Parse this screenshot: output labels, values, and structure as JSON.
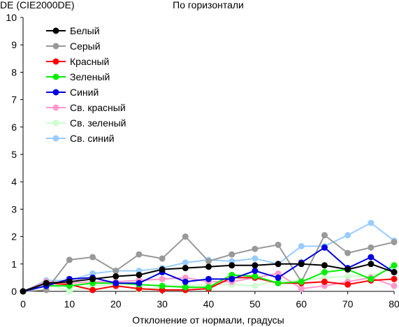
{
  "chart_data": {
    "type": "line",
    "title": "По горизонтали",
    "ylabel": "DE (CIE2000DE)",
    "xlabel": "Отклонение от нормали, градусы",
    "xlim": [
      0,
      80
    ],
    "ylim": [
      0,
      10
    ],
    "x_ticks": [
      0,
      10,
      20,
      30,
      40,
      50,
      60,
      70,
      80
    ],
    "y_ticks": [
      0,
      1,
      2,
      3,
      4,
      5,
      6,
      7,
      8,
      9,
      10
    ],
    "grid": false,
    "legend_position": "top-left",
    "x": [
      0,
      5,
      10,
      15,
      20,
      25,
      30,
      35,
      40,
      45,
      50,
      55,
      60,
      65,
      70,
      75,
      80
    ],
    "series": [
      {
        "name": "Белый",
        "color": "#000000",
        "values": [
          0,
          0.3,
          0.35,
          0.45,
          0.55,
          0.6,
          0.8,
          0.85,
          0.9,
          0.95,
          0.95,
          1.0,
          1.0,
          0.95,
          0.8,
          1.0,
          0.7
        ]
      },
      {
        "name": "Серый",
        "color": "#999999",
        "values": [
          0,
          0.05,
          1.15,
          1.25,
          0.75,
          1.35,
          1.2,
          2.0,
          1.1,
          1.35,
          1.55,
          1.7,
          0.35,
          2.05,
          1.4,
          1.6,
          1.8
        ]
      },
      {
        "name": "Красный",
        "color": "#ff0000",
        "values": [
          0,
          0.3,
          0.25,
          0.05,
          0.2,
          0.1,
          0.05,
          0.05,
          0.1,
          0.5,
          0.5,
          0.3,
          0.3,
          0.35,
          0.25,
          0.4,
          0.45
        ]
      },
      {
        "name": "Зеленый",
        "color": "#00ee00",
        "values": [
          0,
          0.2,
          0.2,
          0.3,
          0.3,
          0.25,
          0.2,
          0.15,
          0.15,
          0.6,
          0.55,
          0.3,
          0.35,
          0.7,
          0.8,
          0.45,
          0.95
        ]
      },
      {
        "name": "Синий",
        "color": "#0000dd",
        "values": [
          0,
          0.2,
          0.45,
          0.5,
          0.3,
          0.3,
          0.7,
          0.35,
          0.45,
          0.45,
          0.75,
          0.5,
          1.05,
          1.6,
          0.85,
          1.25,
          0.7
        ]
      },
      {
        "name": "Св. красный",
        "color": "#ff99cc",
        "values": [
          0,
          0.35,
          0.3,
          0.35,
          0.35,
          0.4,
          0.45,
          0.5,
          0.35,
          0.35,
          0.5,
          0.65,
          0.1,
          0.2,
          0.35,
          0.5,
          0.2
        ]
      },
      {
        "name": "Св. зеленый",
        "color": "#ccffcc",
        "values": [
          0,
          0.3,
          0.0,
          0.2,
          0.25,
          0.05,
          0.15,
          0.2,
          0.25,
          0.25,
          0.2,
          0.4,
          0.4,
          0.5,
          0.55,
          0.55,
          0.85
        ]
      },
      {
        "name": "Св. синий",
        "color": "#99ccff",
        "values": [
          0,
          0.4,
          0.4,
          0.65,
          0.75,
          0.75,
          0.85,
          1.05,
          1.15,
          1.1,
          1.2,
          1.0,
          1.65,
          1.65,
          2.05,
          2.5,
          1.85
        ]
      }
    ]
  }
}
